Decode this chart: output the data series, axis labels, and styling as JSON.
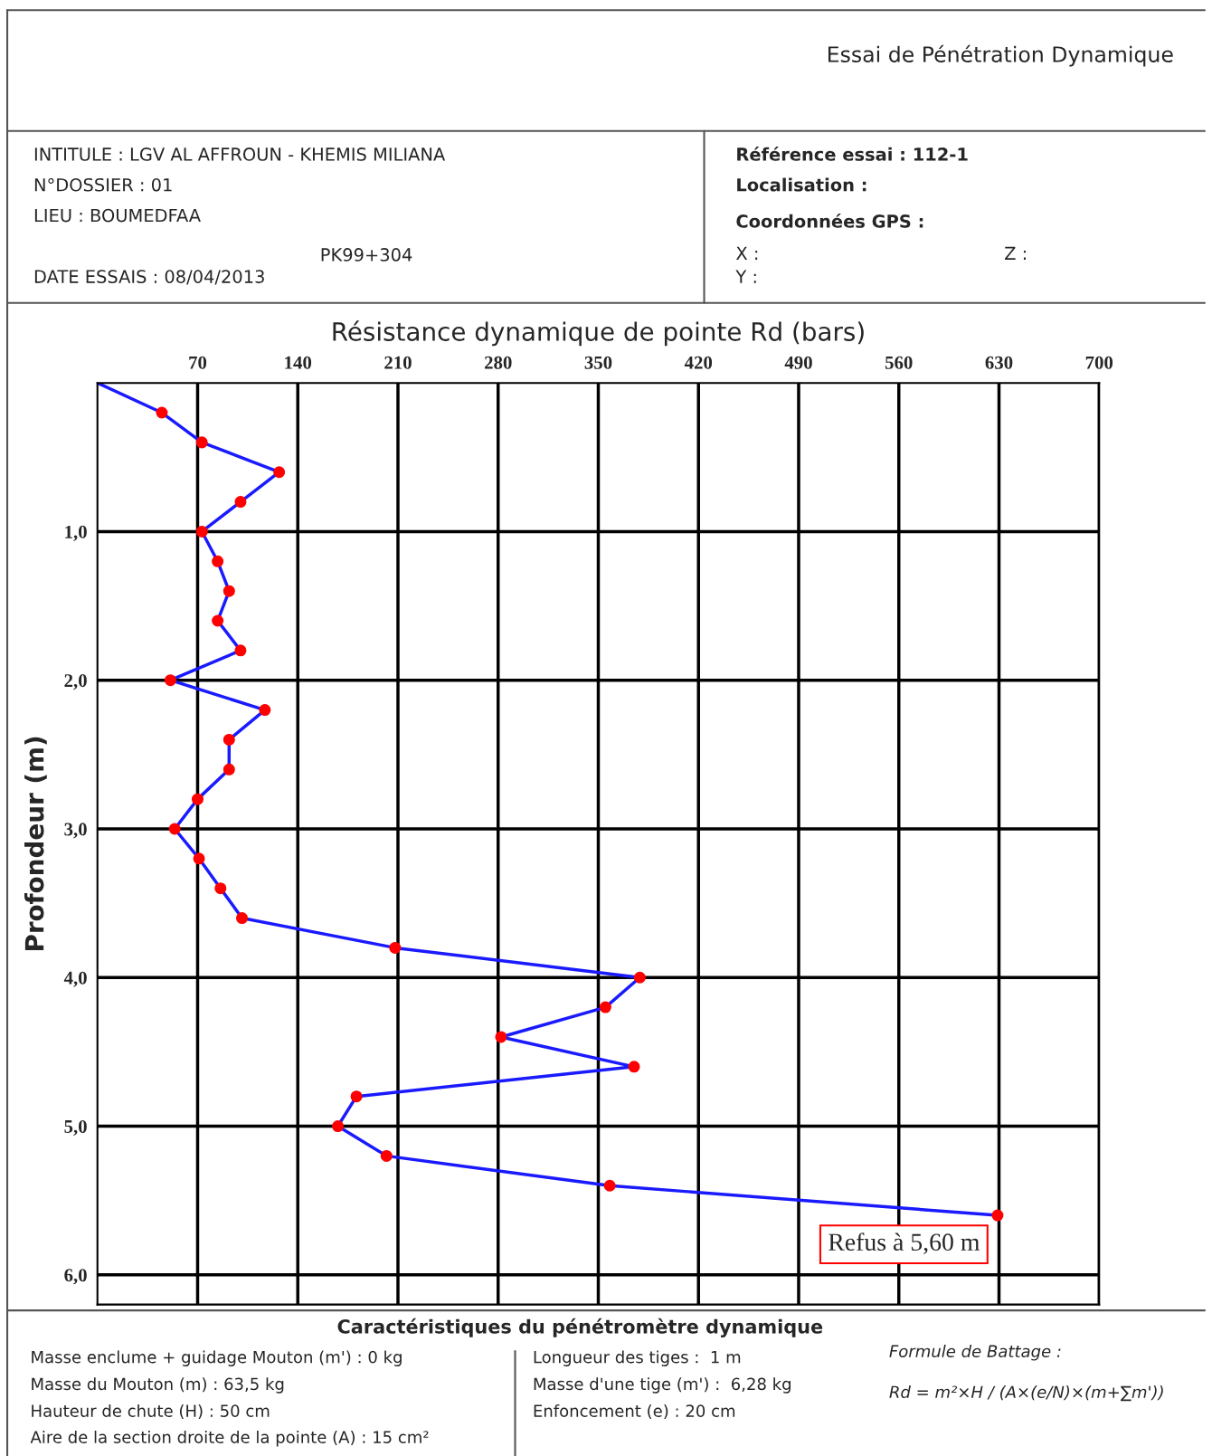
{
  "chart_data": {
    "type": "line",
    "orientation": "horizontal",
    "xlabel": "Résistance dynamique de pointe Rd (bars)",
    "ylabel": "Profondeur (m)",
    "x": [
      0,
      0.2,
      0.4,
      0.6,
      0.8,
      1.0,
      1.2,
      1.4,
      1.6,
      1.8,
      2.0,
      2.2,
      2.4,
      2.6,
      2.8,
      3.0,
      3.2,
      3.4,
      3.6,
      3.8,
      4.0,
      4.2,
      4.4,
      4.6,
      4.8,
      5.0,
      5.2,
      5.4,
      5.6
    ],
    "series": [
      {
        "color": "#1a1aff",
        "values": [
          0,
          45,
          73,
          127,
          100,
          73,
          84,
          92,
          84,
          100,
          51,
          117,
          92,
          92,
          70,
          54,
          71,
          86,
          101,
          208,
          379,
          355,
          282,
          375,
          181,
          168,
          202,
          358,
          629
        ],
        "colors": [
          null,
          "#ff0000",
          "#ff0000",
          "#ff0000",
          "#ff0000",
          "#ff0000",
          "#ff0000",
          "#ff0000",
          "#ff0000",
          "#ff0000",
          "#ff0000",
          "#ff0000",
          "#ff0000",
          "#ff0000",
          "#ff0000",
          "#ff0000",
          "#ff0000",
          "#ff0000",
          "#ff0000",
          "#ff0000",
          "#ff0000",
          "#ff0000",
          "#ff0000",
          "#ff0000",
          "#ff0000",
          "#ff0000",
          "#ff0000",
          "#ff0000",
          "#ff0000"
        ]
      }
    ],
    "xlim": [
      0,
      700
    ],
    "xticks": [
      70,
      140,
      210,
      280,
      350,
      420,
      490,
      560,
      630,
      700
    ],
    "ylim": [
      6.2,
      0
    ],
    "yticks": [
      {
        "value": 1,
        "label": "1,0"
      },
      {
        "value": 2,
        "label": "2,0"
      },
      {
        "value": 3,
        "label": "3,0"
      },
      {
        "value": 4,
        "label": "4,0"
      },
      {
        "value": 5,
        "label": "5,0"
      },
      {
        "value": 6,
        "label": "6,0"
      }
    ],
    "grid": true,
    "marker": "circle",
    "line_style": "solid",
    "annotations": [
      {
        "text": "Refus à 5,60 m",
        "x": 629,
        "y": 5.6
      },
      "Essai de Pénétration Dynamique",
      "INTITULE : LGV AL AFFROUN - KHEMIS MILIANA",
      "N°DOSSIER : 01",
      "LIEU : BOUMEDFAA",
      "DATE ESSAIS : 08/04/2013",
      "PK99+304",
      "Référence essai : 112-1",
      "Localisation :",
      "Coordonnées GPS :",
      "X :",
      "Z :",
      "Y :",
      "Caractéristiques du pénétromètre dynamique",
      "Masse enclume + guidage Mouton (m') : 0 kg",
      "Masse du Mouton (m) : 63,5 kg",
      "Hauteur de chute (H) : 50 cm",
      "Aire de la section droite de la pointe (A) : 15 cm²",
      "Longueur des tiges :  1 m",
      "Masse d'une tige (m') :  6,28 kg",
      "Enfoncement (e) : 20 cm",
      "Formule de Battage :",
      "Rd = m²×H / (A×(e/N)×(m+∑m'))"
    ]
  }
}
